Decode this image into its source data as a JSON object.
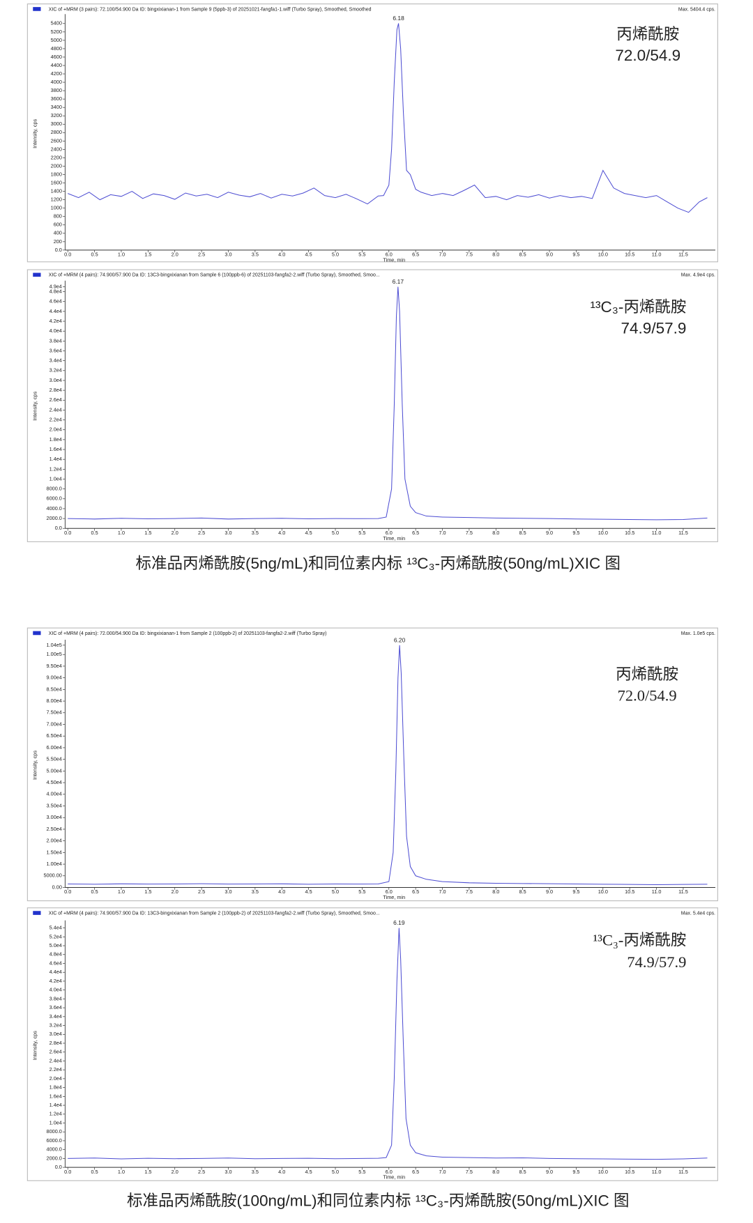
{
  "chart_data": [
    {
      "type": "line",
      "title": "XIC of +MRM (3 pairs): 72.100/54.900 Da ID: bingxixianan-1 from Sample 9 (5ppb-3) of 20251021-fangfa1-1.wiff (Turbo Spray), Smoothed, Smoothed",
      "max_label": "Max. 5404.4 cps.",
      "ylabel": "Intensity, cps",
      "xlabel": "Time, min",
      "peak_label": "6.18",
      "labels": [
        "丙烯酰胺",
        "72.0/54.9"
      ],
      "color": "#4b4bd2",
      "x": [
        0,
        0.2,
        0.4,
        0.6,
        0.8,
        1.0,
        1.2,
        1.4,
        1.6,
        1.8,
        2.0,
        2.2,
        2.4,
        2.6,
        2.8,
        3.0,
        3.2,
        3.4,
        3.6,
        3.8,
        4.0,
        4.2,
        4.4,
        4.6,
        4.8,
        5.0,
        5.2,
        5.4,
        5.6,
        5.8,
        5.9,
        6.0,
        6.05,
        6.1,
        6.15,
        6.18,
        6.22,
        6.27,
        6.33,
        6.4,
        6.5,
        6.6,
        6.8,
        7.0,
        7.2,
        7.4,
        7.6,
        7.8,
        8.0,
        8.2,
        8.4,
        8.6,
        8.8,
        9.0,
        9.2,
        9.4,
        9.6,
        9.8,
        10.0,
        10.2,
        10.4,
        10.6,
        10.8,
        11.0,
        11.2,
        11.4,
        11.6,
        11.8,
        11.95
      ],
      "values": [
        1350,
        1250,
        1380,
        1200,
        1320,
        1280,
        1400,
        1230,
        1340,
        1300,
        1210,
        1360,
        1290,
        1330,
        1250,
        1380,
        1310,
        1270,
        1350,
        1240,
        1330,
        1290,
        1360,
        1480,
        1300,
        1250,
        1330,
        1220,
        1100,
        1290,
        1300,
        1550,
        2400,
        4000,
        5250,
        5404.4,
        4800,
        3300,
        1900,
        1800,
        1450,
        1380,
        1300,
        1350,
        1300,
        1420,
        1550,
        1250,
        1280,
        1200,
        1300,
        1260,
        1320,
        1240,
        1300,
        1250,
        1280,
        1230,
        1900,
        1480,
        1350,
        1300,
        1250,
        1300,
        1150,
        1000,
        900,
        1150,
        1250
      ],
      "xlim": [
        -0.05,
        12.1
      ],
      "xticks": [
        {
          "value": 0,
          "label": "0.0"
        },
        0.5,
        {
          "value": 1,
          "label": "1.0"
        },
        1.5,
        {
          "value": 2,
          "label": "2.0"
        },
        2.5,
        {
          "value": 3,
          "label": "3.0"
        },
        3.5,
        {
          "value": 4,
          "label": "4.0"
        },
        4.5,
        {
          "value": 5,
          "label": "5.0"
        },
        5.5,
        {
          "value": 6,
          "label": "6.0"
        },
        6.5,
        {
          "value": 7,
          "label": "7.0"
        },
        7.5,
        {
          "value": 8,
          "label": "8.0"
        },
        8.5,
        {
          "value": 9,
          "label": "9.0"
        },
        9.5,
        {
          "value": 10,
          "label": "10.0"
        },
        10.5,
        {
          "value": 11,
          "label": "11.0"
        },
        11.5
      ],
      "ylim": [
        0,
        5550
      ],
      "yticks": [
        {
          "value": 0,
          "label": "0.0"
        },
        200,
        400,
        600,
        800,
        1000,
        1200,
        1400,
        1600,
        1800,
        2000,
        2200,
        2400,
        2600,
        2800,
        3000,
        3200,
        3400,
        3600,
        3800,
        4000,
        4200,
        4400,
        4600,
        4800,
        5000,
        5200,
        5400
      ]
    },
    {
      "type": "line",
      "title": "XIC of +MRM (4 pairs): 74.900/57.900 Da ID: 13C3-bingxixianan from Sample 6 (100ppb-6) of 20251103-fangfa2-2.wiff (Turbo Spray), Smoothed, Smoo...",
      "max_label": "Max. 4.9e4 cps.",
      "ylabel": "Intensity, cps",
      "xlabel": "Time, min",
      "peak_label": "6.17",
      "labels": [
        "¹³C₃-丙烯酰胺",
        "74.9/57.9"
      ],
      "color": "#4b4bd2",
      "x": [
        0,
        0.5,
        1.0,
        1.5,
        2.0,
        2.5,
        3.0,
        3.5,
        4.0,
        4.5,
        5.0,
        5.5,
        5.8,
        5.95,
        6.05,
        6.1,
        6.14,
        6.17,
        6.2,
        6.25,
        6.3,
        6.4,
        6.5,
        6.7,
        7.0,
        7.5,
        8.0,
        8.5,
        9.0,
        9.5,
        10.0,
        10.5,
        11.0,
        11.5,
        11.95
      ],
      "values": [
        2000,
        1900,
        2050,
        1950,
        2000,
        2100,
        1900,
        2000,
        2050,
        1950,
        2000,
        1980,
        2000,
        2300,
        8000,
        25000,
        43000,
        49000,
        44000,
        25000,
        10000,
        4500,
        3200,
        2500,
        2300,
        2200,
        2100,
        2050,
        2000,
        1900,
        1850,
        1800,
        1750,
        1800,
        2100
      ],
      "xlim": [
        -0.05,
        12.1
      ],
      "xticks": [
        {
          "value": 0,
          "label": "0.0"
        },
        0.5,
        {
          "value": 1,
          "label": "1.0"
        },
        1.5,
        {
          "value": 2,
          "label": "2.0"
        },
        2.5,
        {
          "value": 3,
          "label": "3.0"
        },
        3.5,
        {
          "value": 4,
          "label": "4.0"
        },
        4.5,
        {
          "value": 5,
          "label": "5.0"
        },
        5.5,
        {
          "value": 6,
          "label": "6.0"
        },
        6.5,
        {
          "value": 7,
          "label": "7.0"
        },
        7.5,
        {
          "value": 8,
          "label": "8.0"
        },
        8.5,
        {
          "value": 9,
          "label": "9.0"
        },
        9.5,
        {
          "value": 10,
          "label": "10.0"
        },
        10.5,
        {
          "value": 11,
          "label": "11.0"
        },
        11.5
      ],
      "ylim": [
        0,
        49600
      ],
      "yticks": [
        {
          "value": 0,
          "label": "0.0"
        },
        {
          "value": 2000,
          "label": "2000.0"
        },
        {
          "value": 4000,
          "label": "4000.0"
        },
        {
          "value": 6000,
          "label": "6000.0"
        },
        {
          "value": 8000,
          "label": "8000.0"
        },
        {
          "value": 10000,
          "label": "1.0e4"
        },
        {
          "value": 12000,
          "label": "1.2e4"
        },
        {
          "value": 14000,
          "label": "1.4e4"
        },
        {
          "value": 16000,
          "label": "1.6e4"
        },
        {
          "value": 18000,
          "label": "1.8e4"
        },
        {
          "value": 20000,
          "label": "2.0e4"
        },
        {
          "value": 22000,
          "label": "2.2e4"
        },
        {
          "value": 24000,
          "label": "2.4e4"
        },
        {
          "value": 26000,
          "label": "2.6e4"
        },
        {
          "value": 28000,
          "label": "2.8e4"
        },
        {
          "value": 30000,
          "label": "3.0e4"
        },
        {
          "value": 32000,
          "label": "3.2e4"
        },
        {
          "value": 34000,
          "label": "3.4e4"
        },
        {
          "value": 36000,
          "label": "3.6e4"
        },
        {
          "value": 38000,
          "label": "3.8e4"
        },
        {
          "value": 40000,
          "label": "4.0e4"
        },
        {
          "value": 42000,
          "label": "4.2e4"
        },
        {
          "value": 44000,
          "label": "4.4e4"
        },
        {
          "value": 46000,
          "label": "4.6e4"
        },
        {
          "value": 48000,
          "label": "4.8e4"
        },
        {
          "value": 49000,
          "label": "4.9e4"
        }
      ]
    },
    {
      "type": "line",
      "title": "XIC of +MRM (4 pairs): 72.000/54.900 Da ID: bingxixianan-1 from Sample 2 (100ppb-2) of 20251103-fangfa2-2.wiff (Turbo Spray)",
      "max_label": "Max. 1.0e5 cps.",
      "ylabel": "Intensity, cps",
      "xlabel": "Time, min",
      "peak_label": "6.20",
      "labels": [
        "丙烯酰胺",
        "72.0/54.9"
      ],
      "color": "#4b4bd2",
      "x": [
        0,
        0.5,
        1.0,
        1.5,
        2.0,
        2.5,
        3.0,
        3.5,
        4.0,
        4.5,
        5.0,
        5.5,
        5.8,
        6.0,
        6.08,
        6.13,
        6.17,
        6.2,
        6.23,
        6.28,
        6.33,
        6.4,
        6.5,
        6.7,
        7.0,
        7.5,
        8.0,
        8.5,
        9.0,
        9.5,
        10.0,
        10.5,
        11.0,
        11.5,
        11.95
      ],
      "values": [
        1500,
        1400,
        1550,
        1450,
        1500,
        1600,
        1450,
        1500,
        1550,
        1400,
        1500,
        1450,
        1500,
        2500,
        15000,
        50000,
        90000,
        104000,
        92000,
        55000,
        22000,
        9000,
        5000,
        3500,
        2500,
        2000,
        1800,
        1700,
        1600,
        1500,
        1400,
        1300,
        1200,
        1300,
        1400
      ],
      "xlim": [
        -0.05,
        12.1
      ],
      "xticks": [
        {
          "value": 0,
          "label": "0.0"
        },
        0.5,
        {
          "value": 1,
          "label": "1.0"
        },
        1.5,
        {
          "value": 2,
          "label": "2.0"
        },
        2.5,
        {
          "value": 3,
          "label": "3.0"
        },
        3.5,
        {
          "value": 4,
          "label": "4.0"
        },
        4.5,
        {
          "value": 5,
          "label": "5.0"
        },
        5.5,
        {
          "value": 6,
          "label": "6.0"
        },
        6.5,
        {
          "value": 7,
          "label": "7.0"
        },
        7.5,
        {
          "value": 8,
          "label": "8.0"
        },
        8.5,
        {
          "value": 9,
          "label": "9.0"
        },
        9.5,
        {
          "value": 10,
          "label": "10.0"
        },
        10.5,
        {
          "value": 11,
          "label": "11.0"
        },
        11.5
      ],
      "ylim": [
        0,
        105000
      ],
      "yticks": [
        {
          "value": 0,
          "label": "0.00"
        },
        {
          "value": 5000,
          "label": "5000.00"
        },
        {
          "value": 10000,
          "label": "1.00e4"
        },
        {
          "value": 15000,
          "label": "1.50e4"
        },
        {
          "value": 20000,
          "label": "2.00e4"
        },
        {
          "value": 25000,
          "label": "2.50e4"
        },
        {
          "value": 30000,
          "label": "3.00e4"
        },
        {
          "value": 35000,
          "label": "3.50e4"
        },
        {
          "value": 40000,
          "label": "4.00e4"
        },
        {
          "value": 45000,
          "label": "4.50e4"
        },
        {
          "value": 50000,
          "label": "5.00e4"
        },
        {
          "value": 55000,
          "label": "5.50e4"
        },
        {
          "value": 60000,
          "label": "6.00e4"
        },
        {
          "value": 65000,
          "label": "6.50e4"
        },
        {
          "value": 70000,
          "label": "7.00e4"
        },
        {
          "value": 75000,
          "label": "7.50e4"
        },
        {
          "value": 80000,
          "label": "8.00e4"
        },
        {
          "value": 85000,
          "label": "8.50e4"
        },
        {
          "value": 90000,
          "label": "9.00e4"
        },
        {
          "value": 95000,
          "label": "9.50e4"
        },
        {
          "value": 100000,
          "label": "1.00e5"
        },
        {
          "value": 104000,
          "label": "1.04e5"
        }
      ]
    },
    {
      "type": "line",
      "title": "XIC of +MRM (4 pairs): 74.900/57.900 Da ID: 13C3-bingxixianan from Sample 2 (100ppb-2) of 20251103-fangfa2-2.wiff (Turbo Spray), Smoothed, Smoo...",
      "max_label": "Max. 5.4e4 cps.",
      "ylabel": "Intensity, cps",
      "xlabel": "Time, min",
      "peak_label": "6.19",
      "labels": [
        "¹³C₃-丙烯酰胺",
        "74.9/57.9"
      ],
      "color": "#4b4bd2",
      "x": [
        0,
        0.5,
        1.0,
        1.5,
        2.0,
        2.5,
        3.0,
        3.5,
        4.0,
        4.5,
        5.0,
        5.5,
        5.8,
        5.95,
        6.05,
        6.1,
        6.15,
        6.19,
        6.22,
        6.27,
        6.32,
        6.4,
        6.5,
        6.7,
        7.0,
        7.5,
        8.0,
        8.5,
        9.0,
        9.5,
        10.0,
        10.5,
        11.0,
        11.5,
        11.95
      ],
      "values": [
        2000,
        2100,
        1900,
        2050,
        1950,
        2000,
        2100,
        1950,
        2000,
        2050,
        1950,
        2000,
        2050,
        2200,
        5000,
        20000,
        42000,
        54000,
        47000,
        28000,
        11000,
        5000,
        3300,
        2600,
        2300,
        2200,
        2100,
        2150,
        2000,
        1950,
        1900,
        1850,
        1800,
        1900,
        2100
      ],
      "xlim": [
        -0.05,
        12.1
      ],
      "xticks": [
        {
          "value": 0,
          "label": "0.0"
        },
        0.5,
        {
          "value": 1,
          "label": "1.0"
        },
        1.5,
        {
          "value": 2,
          "label": "2.0"
        },
        2.5,
        {
          "value": 3,
          "label": "3.0"
        },
        3.5,
        {
          "value": 4,
          "label": "4.0"
        },
        4.5,
        {
          "value": 5,
          "label": "5.0"
        },
        5.5,
        {
          "value": 6,
          "label": "6.0"
        },
        6.5,
        {
          "value": 7,
          "label": "7.0"
        },
        7.5,
        {
          "value": 8,
          "label": "8.0"
        },
        8.5,
        {
          "value": 9,
          "label": "9.0"
        },
        9.5,
        {
          "value": 10,
          "label": "10.0"
        },
        10.5,
        {
          "value": 11,
          "label": "11.0"
        },
        11.5
      ],
      "ylim": [
        0,
        55000
      ],
      "yticks": [
        {
          "value": 0,
          "label": "0.0"
        },
        {
          "value": 2000,
          "label": "2000.0"
        },
        {
          "value": 4000,
          "label": "4000.0"
        },
        {
          "value": 6000,
          "label": "6000.0"
        },
        {
          "value": 8000,
          "label": "8000.0"
        },
        {
          "value": 10000,
          "label": "1.0e4"
        },
        {
          "value": 12000,
          "label": "1.2e4"
        },
        {
          "value": 14000,
          "label": "1.4e4"
        },
        {
          "value": 16000,
          "label": "1.6e4"
        },
        {
          "value": 18000,
          "label": "1.8e4"
        },
        {
          "value": 20000,
          "label": "2.0e4"
        },
        {
          "value": 22000,
          "label": "2.2e4"
        },
        {
          "value": 24000,
          "label": "2.4e4"
        },
        {
          "value": 26000,
          "label": "2.6e4"
        },
        {
          "value": 28000,
          "label": "2.8e4"
        },
        {
          "value": 30000,
          "label": "3.0e4"
        },
        {
          "value": 32000,
          "label": "3.2e4"
        },
        {
          "value": 34000,
          "label": "3.4e4"
        },
        {
          "value": 36000,
          "label": "3.6e4"
        },
        {
          "value": 38000,
          "label": "3.8e4"
        },
        {
          "value": 40000,
          "label": "4.0e4"
        },
        {
          "value": 42000,
          "label": "4.2e4"
        },
        {
          "value": 44000,
          "label": "4.4e4"
        },
        {
          "value": 46000,
          "label": "4.6e4"
        },
        {
          "value": 48000,
          "label": "4.8e4"
        },
        {
          "value": 50000,
          "label": "5.0e4"
        },
        {
          "value": 52000,
          "label": "5.2e4"
        },
        {
          "value": 54000,
          "label": "5.4e4"
        }
      ]
    }
  ],
  "captions": [
    "标准品丙烯酰胺(5ng/mL)和同位素内标 ¹³C₃-丙烯酰胺(50ng/mL)XIC 图",
    "标准品丙烯酰胺(100ng/mL)和同位素内标 ¹³C₃-丙烯酰胺(50ng/mL)XIC 图"
  ]
}
